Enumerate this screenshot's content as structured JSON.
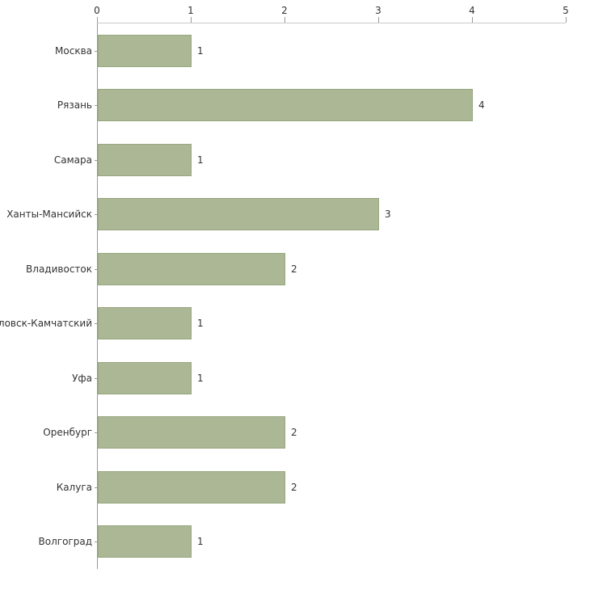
{
  "chart_data": {
    "type": "bar",
    "orientation": "horizontal",
    "title": "",
    "xlabel": "",
    "ylabel": "",
    "categories": [
      "Москва",
      "Рязань",
      "Самара",
      "Ханты-Мансийск",
      "Владивосток",
      "Петропавловск-Камчатский",
      "Уфа",
      "Оренбург",
      "Калуга",
      "Волгоград"
    ],
    "values": [
      1,
      4,
      1,
      3,
      2,
      1,
      1,
      2,
      2,
      1
    ],
    "value_labels": [
      "1",
      "4",
      "1",
      "3",
      "2",
      "1",
      "1",
      "2",
      "2",
      "1"
    ],
    "xlim": [
      0,
      5
    ],
    "x_ticks": [
      "0",
      "1",
      "2",
      "3",
      "4",
      "5"
    ],
    "grid": false,
    "legend": false,
    "colors": {
      "bar_fill": "#abb795",
      "bar_border": "#97a67f",
      "axis": "#9a9a9a",
      "text": "#333333",
      "background": "#ffffff"
    }
  }
}
